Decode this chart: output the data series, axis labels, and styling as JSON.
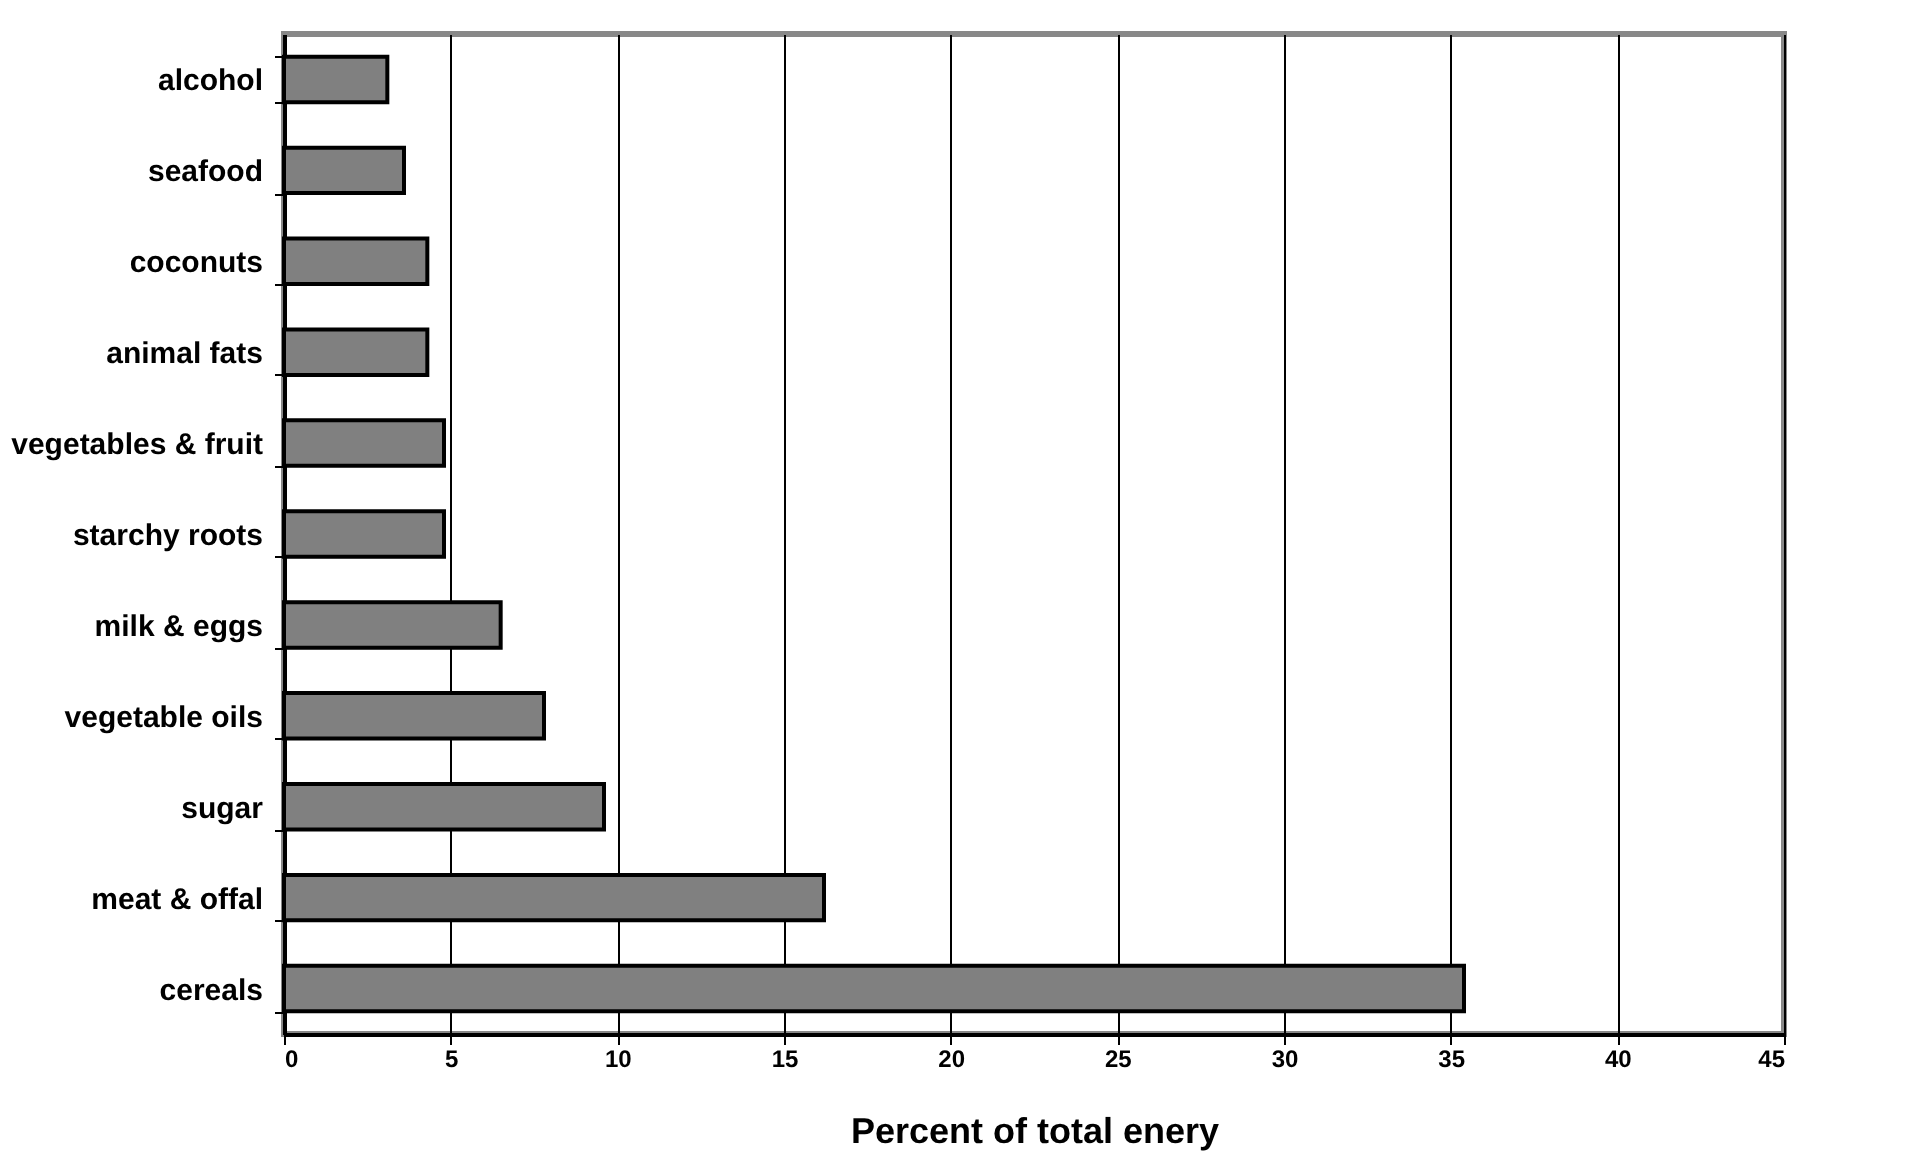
{
  "chart_data": {
    "type": "bar",
    "orientation": "horizontal",
    "xlabel": "Percent of total enery",
    "categories": [
      "alcohol",
      "seafood",
      "coconuts",
      "animal fats",
      "vegetables & fruit",
      "starchy roots",
      "milk & eggs",
      "vegetable oils",
      "sugar",
      "meat & offal",
      "cereals"
    ],
    "values": [
      3.1,
      3.6,
      4.3,
      4.3,
      4.8,
      4.8,
      6.5,
      7.8,
      9.6,
      16.2,
      35.4
    ],
    "color": "#808080",
    "xlim": [
      0,
      45
    ],
    "xticks": [
      0,
      5,
      10,
      15,
      20,
      25,
      30,
      35,
      40,
      45
    ],
    "grid": "x"
  }
}
